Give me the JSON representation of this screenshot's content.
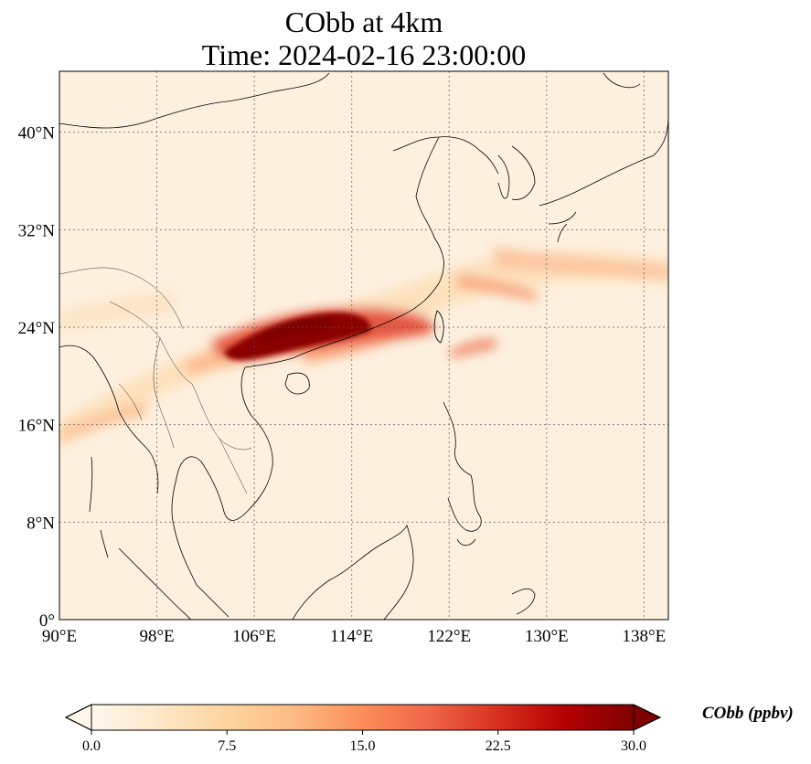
{
  "title": "CObb at 4km",
  "time_line": "Time: 2024-02-16 23:00:00",
  "map": {
    "lon_range": [
      90,
      140
    ],
    "lat_range": [
      0,
      45
    ],
    "x_ticks": [
      {
        "lon": 90,
        "label": "90°E"
      },
      {
        "lon": 98,
        "label": "98°E"
      },
      {
        "lon": 106,
        "label": "106°E"
      },
      {
        "lon": 114,
        "label": "114°E"
      },
      {
        "lon": 122,
        "label": "122°E"
      },
      {
        "lon": 130,
        "label": "130°E"
      },
      {
        "lon": 138,
        "label": "138°E"
      }
    ],
    "y_ticks": [
      {
        "lat": 0,
        "label": "0°"
      },
      {
        "lat": 8,
        "label": "8°N"
      },
      {
        "lat": 16,
        "label": "16°N"
      },
      {
        "lat": 24,
        "label": "24°N"
      },
      {
        "lat": 32,
        "label": "32°N"
      },
      {
        "lat": 40,
        "label": "40°N"
      }
    ],
    "gridlines": true,
    "coastlines": true,
    "borders": true
  },
  "colorbar": {
    "label": "CObb (ppbv)",
    "min": 0.0,
    "max": 30.0,
    "extend": "both",
    "colormap": "OrRd",
    "colors": [
      "#fff7ec",
      "#fee8c8",
      "#fdd49e",
      "#fdbb84",
      "#fc8d59",
      "#ef6548",
      "#d7301f",
      "#b30000",
      "#7f0000"
    ],
    "ticks": [
      {
        "value": 0.0,
        "label": "0.0"
      },
      {
        "value": 7.5,
        "label": "7.5"
      },
      {
        "value": 15.0,
        "label": "15.0"
      },
      {
        "value": 22.5,
        "label": "22.5"
      },
      {
        "value": 30.0,
        "label": "30.0"
      }
    ]
  }
}
